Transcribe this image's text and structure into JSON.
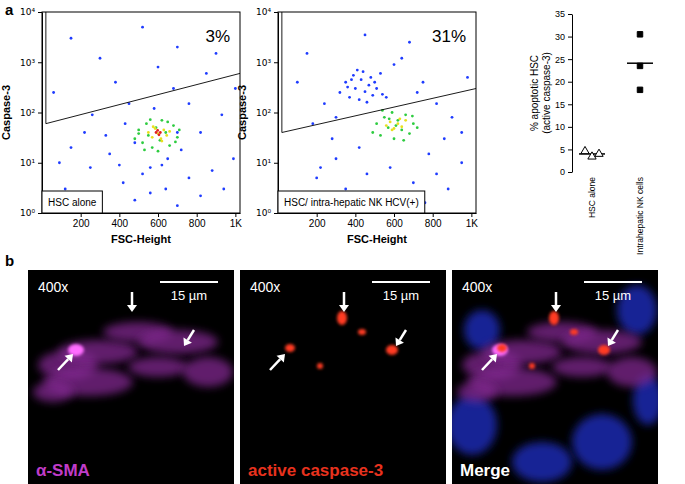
{
  "panel_labels": [
    "a",
    "b"
  ],
  "chart_data": [
    {
      "type": "scatter",
      "x_label": "FSC-Height",
      "y_label": "Caspase-3",
      "xlim": [
        0,
        1024
      ],
      "xticks": [
        200,
        400,
        600,
        800,
        {
          "value": 1000,
          "label": "1K"
        }
      ],
      "ylim": [
        1,
        10000
      ],
      "log": "y",
      "yticks": [
        {
          "value": 1,
          "label": "10⁰"
        },
        {
          "value": 10,
          "label": "10¹"
        },
        {
          "value": 100,
          "label": "10²"
        },
        {
          "value": 1000,
          "label": "10³"
        },
        {
          "value": 10000,
          "label": "10⁴"
        }
      ],
      "annotation": "3%",
      "box_label": "HSC alone",
      "marker": "dot",
      "gate": {
        "x": [
          20,
          20,
          1024
        ],
        "y": [
          10000,
          60,
          600
        ]
      },
      "series": [
        {
          "color": "#1f3cff",
          "x": [
            120,
            180,
            250,
            300,
            350,
            420,
            480,
            520,
            560,
            640,
            700,
            760,
            820,
            880,
            940,
            990,
            150,
            220,
            330,
            400,
            450,
            380,
            600,
            700,
            300,
            150,
            520,
            850,
            900,
            680,
            260,
            760,
            820,
            930,
            1000,
            90,
            60,
            480,
            430,
            580,
            650,
            720,
            560,
            620,
            700
          ],
          "values": [
            3,
            1.5,
            8,
            2,
            15,
            4,
            1.8,
            6,
            2.5,
            3,
            1.4,
            5,
            2.2,
            7,
            3,
            12,
            20,
            40,
            35,
            9,
            150,
            400,
            800,
            2000,
            1200,
            3000,
            5000,
            600,
            1500,
            300,
            90,
            150,
            40,
            90,
            300,
            10,
            250,
            25,
            60,
            120,
            12,
            18,
            8,
            9,
            40
          ]
        },
        {
          "color": "#2ecc40",
          "x": [
            480,
            500,
            520,
            540,
            550,
            570,
            590,
            610,
            620,
            640,
            660,
            680,
            700,
            530,
            600,
            650,
            710,
            500,
            560,
            690
          ],
          "values": [
            30,
            45,
            25,
            60,
            35,
            20,
            50,
            28,
            70,
            40,
            22,
            55,
            32,
            18,
            17,
            65,
            45,
            38,
            72,
            26
          ]
        },
        {
          "color": "#e8e020",
          "x": [
            550,
            570,
            585,
            600,
            615,
            630,
            645,
            660,
            575,
            620
          ],
          "values": [
            40,
            32,
            48,
            38,
            30,
            45,
            35,
            42,
            52,
            27
          ]
        },
        {
          "color": "#e02020",
          "x": [
            590,
            605,
            598,
            612
          ],
          "values": [
            40,
            36,
            44,
            40
          ]
        }
      ]
    },
    {
      "type": "scatter",
      "x_label": "FSC-Height",
      "y_label": "Caspase-3",
      "xlim": [
        0,
        1024
      ],
      "xticks": [
        200,
        400,
        600,
        800,
        {
          "value": 1000,
          "label": "1K"
        }
      ],
      "ylim": [
        1,
        10000
      ],
      "log": "y",
      "yticks": [
        {
          "value": 1,
          "label": "10⁰"
        },
        {
          "value": 10,
          "label": "10¹"
        },
        {
          "value": 100,
          "label": "10²"
        },
        {
          "value": 1000,
          "label": "10³"
        },
        {
          "value": 10000,
          "label": "10⁴"
        }
      ],
      "annotation": "31%",
      "box_label": "HSC/ intra-hepatic NK HCV(+)",
      "marker": "dot",
      "gate": {
        "x": [
          20,
          20,
          1024
        ],
        "y": [
          10000,
          40,
          300
        ]
      },
      "series": [
        {
          "color": "#1f3cff",
          "x": [
            320,
            350,
            370,
            390,
            400,
            420,
            430,
            440,
            450,
            470,
            480,
            490,
            500,
            510,
            530,
            540,
            360,
            410,
            460,
            380,
            120,
            200,
            250,
            300,
            350,
            420,
            460,
            520,
            580,
            640,
            700,
            760,
            820,
            880,
            950,
            180,
            240,
            280,
            600,
            680,
            750,
            820,
            900,
            980,
            150,
            450,
            560,
            720,
            860,
            950,
            300,
            640,
            220,
            100,
            780
          ],
          "values": [
            250,
            400,
            200,
            550,
            300,
            180,
            450,
            650,
            260,
            350,
            500,
            220,
            400,
            300,
            600,
            230,
            320,
            700,
            160,
            450,
            2,
            5,
            1.5,
            12,
            3,
            20,
            6,
            2,
            8,
            2.5,
            4,
            1.6,
            6,
            3,
            10,
            60,
            150,
            30,
            900,
            2500,
            400,
            150,
            80,
            500,
            1500,
            3500,
            200,
            250,
            30,
            40,
            80,
            1200,
            8,
            400,
            15
          ]
        },
        {
          "color": "#2ecc40",
          "x": [
            490,
            510,
            530,
            550,
            570,
            590,
            600,
            620,
            640,
            660,
            680,
            700,
            720,
            540,
            610,
            650,
            575,
            695
          ],
          "values": [
            40,
            60,
            35,
            80,
            50,
            100,
            30,
            70,
            45,
            90,
            38,
            60,
            50,
            110,
            55,
            28,
            75,
            85
          ]
        },
        {
          "color": "#e8e020",
          "x": [
            560,
            580,
            600,
            620,
            640,
            660,
            590,
            630
          ],
          "values": [
            55,
            65,
            48,
            60,
            52,
            70,
            45,
            75
          ]
        }
      ]
    },
    {
      "type": "dot",
      "y_label": [
        "% apoptotic HSC",
        "(active caspase-3)"
      ],
      "categories": [
        "HSC alone",
        "Intrahepatic NK cells"
      ],
      "ylim": [
        0,
        35
      ],
      "yticks": [
        0,
        5,
        10,
        15,
        20,
        25,
        30,
        35
      ],
      "means": [
        4.0,
        24.1
      ],
      "series": [
        {
          "marker": "triangle-open",
          "color": "#000000",
          "x": [
            "HSC alone",
            "HSC alone",
            "HSC alone"
          ],
          "values": [
            4.6,
            3.4,
            4.0
          ]
        },
        {
          "marker": "square",
          "color": "#000000",
          "x": [
            "Intrahepatic NK cells",
            "Intrahepatic NK cells",
            "Intrahepatic NK cells"
          ],
          "values": [
            30.5,
            23.5,
            18.2
          ]
        }
      ]
    }
  ],
  "images": [
    {
      "magnification": "400x",
      "scale_bar": "15 µm",
      "label": "α-SMA",
      "color": "#c03cc8"
    },
    {
      "magnification": "400x",
      "scale_bar": "15 µm",
      "label": "active caspase-3",
      "color": "#e8321e"
    },
    {
      "magnification": "400x",
      "scale_bar": "15 µm",
      "label": "Merge",
      "color": "#ffffff"
    }
  ]
}
